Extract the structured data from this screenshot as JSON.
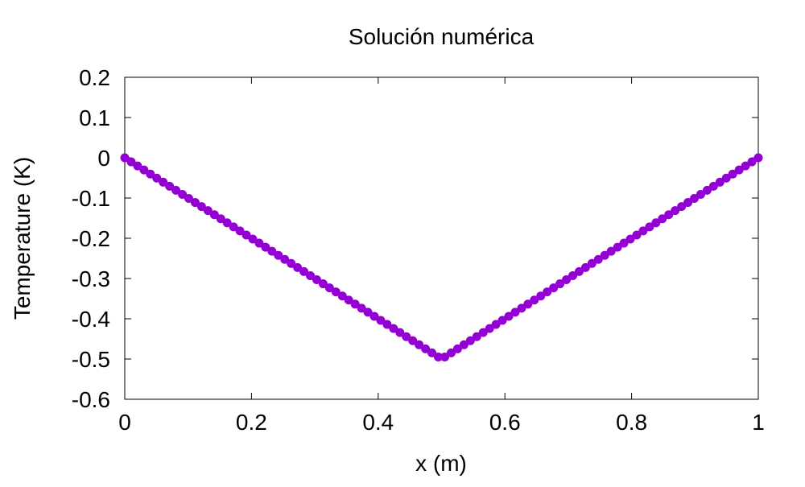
{
  "chart_data": {
    "type": "line",
    "title": "Solución numérica",
    "xlabel": "x (m)",
    "ylabel": "Temperature (K)",
    "xlim": [
      0,
      1
    ],
    "ylim": [
      -0.6,
      0.2
    ],
    "xticks": [
      0,
      0.2,
      0.4,
      0.6,
      0.8,
      1
    ],
    "xtick_labels": [
      "0",
      "0.2",
      "0.4",
      "0.6",
      "0.8",
      "1"
    ],
    "yticks": [
      0.2,
      0.1,
      0,
      -0.1,
      -0.2,
      -0.3,
      -0.4,
      -0.5,
      -0.6
    ],
    "ytick_labels": [
      "0.2",
      "0.1",
      "0",
      "-0.1",
      "-0.2",
      "-0.3",
      "-0.4",
      "-0.5",
      "-0.6"
    ],
    "grid": false,
    "legend": "none",
    "marker": "circle",
    "series": [
      {
        "color": "#9400d3",
        "x": [
          0,
          0.0101,
          0.0202,
          0.0303,
          0.0404,
          0.0505,
          0.0606,
          0.0707,
          0.0808,
          0.0909,
          0.101,
          0.1111,
          0.1212,
          0.1313,
          0.1414,
          0.1515,
          0.1616,
          0.1717,
          0.1818,
          0.1919,
          0.202,
          0.2121,
          0.2222,
          0.2323,
          0.2424,
          0.2525,
          0.2626,
          0.2727,
          0.2828,
          0.2929,
          0.303,
          0.3131,
          0.3232,
          0.3333,
          0.3434,
          0.3535,
          0.3636,
          0.3737,
          0.3838,
          0.3939,
          0.404,
          0.4141,
          0.4242,
          0.4343,
          0.4444,
          0.4545,
          0.4646,
          0.4747,
          0.4848,
          0.4949,
          0.5051,
          0.5152,
          0.5253,
          0.5354,
          0.5455,
          0.5556,
          0.5657,
          0.5758,
          0.5859,
          0.596,
          0.6061,
          0.6162,
          0.6263,
          0.6364,
          0.6465,
          0.6566,
          0.6667,
          0.6768,
          0.6869,
          0.697,
          0.7071,
          0.7172,
          0.7273,
          0.7374,
          0.7475,
          0.7576,
          0.7677,
          0.7778,
          0.7879,
          0.798,
          0.8081,
          0.8182,
          0.8283,
          0.8384,
          0.8485,
          0.8586,
          0.8687,
          0.8788,
          0.8889,
          0.899,
          0.9091,
          0.9192,
          0.9293,
          0.9394,
          0.9495,
          0.9596,
          0.9697,
          0.9798,
          0.9899,
          1
        ],
        "y": [
          0,
          -0.0101,
          -0.0202,
          -0.0303,
          -0.0404,
          -0.0505,
          -0.0606,
          -0.0707,
          -0.0808,
          -0.0909,
          -0.101,
          -0.1111,
          -0.1212,
          -0.1313,
          -0.1414,
          -0.1515,
          -0.1616,
          -0.1717,
          -0.1818,
          -0.1919,
          -0.202,
          -0.2121,
          -0.2222,
          -0.2323,
          -0.2424,
          -0.2525,
          -0.2626,
          -0.2727,
          -0.2828,
          -0.2929,
          -0.303,
          -0.3131,
          -0.3232,
          -0.3333,
          -0.3434,
          -0.3535,
          -0.3636,
          -0.3737,
          -0.3838,
          -0.3939,
          -0.404,
          -0.4141,
          -0.4242,
          -0.4343,
          -0.4444,
          -0.4545,
          -0.4646,
          -0.4747,
          -0.4848,
          -0.4949,
          -0.4949,
          -0.4848,
          -0.4747,
          -0.4646,
          -0.4545,
          -0.4444,
          -0.4343,
          -0.4242,
          -0.4141,
          -0.404,
          -0.3939,
          -0.3838,
          -0.3737,
          -0.3636,
          -0.3535,
          -0.3434,
          -0.3333,
          -0.3232,
          -0.3131,
          -0.303,
          -0.2929,
          -0.2828,
          -0.2727,
          -0.2626,
          -0.2525,
          -0.2424,
          -0.2323,
          -0.2222,
          -0.2121,
          -0.202,
          -0.1919,
          -0.1818,
          -0.1717,
          -0.1616,
          -0.1515,
          -0.1414,
          -0.1313,
          -0.1212,
          -0.1111,
          -0.101,
          -0.0909,
          -0.0808,
          -0.0707,
          -0.0606,
          -0.0505,
          -0.0404,
          -0.0303,
          -0.0202,
          -0.0101,
          0
        ]
      }
    ]
  }
}
